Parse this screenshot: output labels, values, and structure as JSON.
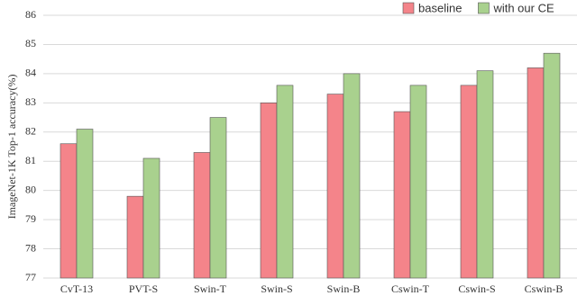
{
  "chart_data": {
    "type": "bar",
    "y_label": "ImageNet-1K Top-1 accuracy(%)",
    "categories": [
      "CvT-13",
      "PVT-S",
      "Swin-T",
      "Swin-S",
      "Swin-B",
      "Cswin-T",
      "Cswin-S",
      "Cswin-B"
    ],
    "series": [
      {
        "name": "baseline",
        "color": "#f4848a",
        "values": [
          81.6,
          79.8,
          81.3,
          83.0,
          83.3,
          82.7,
          83.6,
          84.2
        ]
      },
      {
        "name": "with our CE",
        "color": "#a9d18e",
        "values": [
          82.1,
          81.1,
          82.5,
          83.6,
          84.0,
          83.6,
          84.1,
          84.7
        ]
      }
    ],
    "ylim": [
      77,
      86
    ],
    "yticks": [
      77,
      78,
      79,
      80,
      81,
      82,
      83,
      84,
      85,
      86
    ],
    "grid": true,
    "legend": "top-right"
  }
}
